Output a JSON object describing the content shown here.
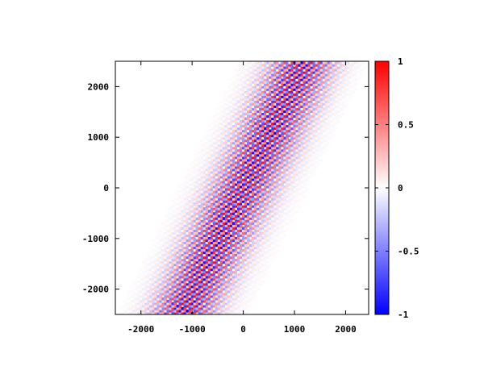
{
  "chart_data": {
    "type": "heatmap",
    "title": "",
    "xlabel": "",
    "ylabel": "",
    "xlim": [
      -2500,
      2450
    ],
    "ylim": [
      -2500,
      2500
    ],
    "x_ticks": [
      -2000,
      -1000,
      0,
      1000,
      2000
    ],
    "x_tick_labels": [
      "-2000",
      "-1000",
      "0",
      "1000",
      "2000"
    ],
    "y_ticks": [
      -2000,
      -1000,
      0,
      1000,
      2000
    ],
    "y_tick_labels": [
      "-2000",
      "-1000",
      "0",
      "1000",
      "2000"
    ],
    "colorbar": {
      "range": [
        -1,
        1
      ],
      "ticks": [
        -1,
        -0.5,
        0,
        0.5,
        1
      ],
      "tick_labels": [
        "-1",
        "-0.5",
        "0",
        "0.5",
        "1"
      ],
      "colors": {
        "min": "#0000ff",
        "mid": "#ffffff",
        "max": "#ff0000"
      }
    },
    "field": {
      "description_of_pattern": "diagonal oscillating band",
      "band_slope_y_per_x": 2.1,
      "band_center_x_at_y0": 0,
      "band_halfwidth_x": 620,
      "oscillation_period_x": 105,
      "oscillation_direction_slope": -0.75
    },
    "grid": false,
    "legend": "colorbar-right"
  }
}
